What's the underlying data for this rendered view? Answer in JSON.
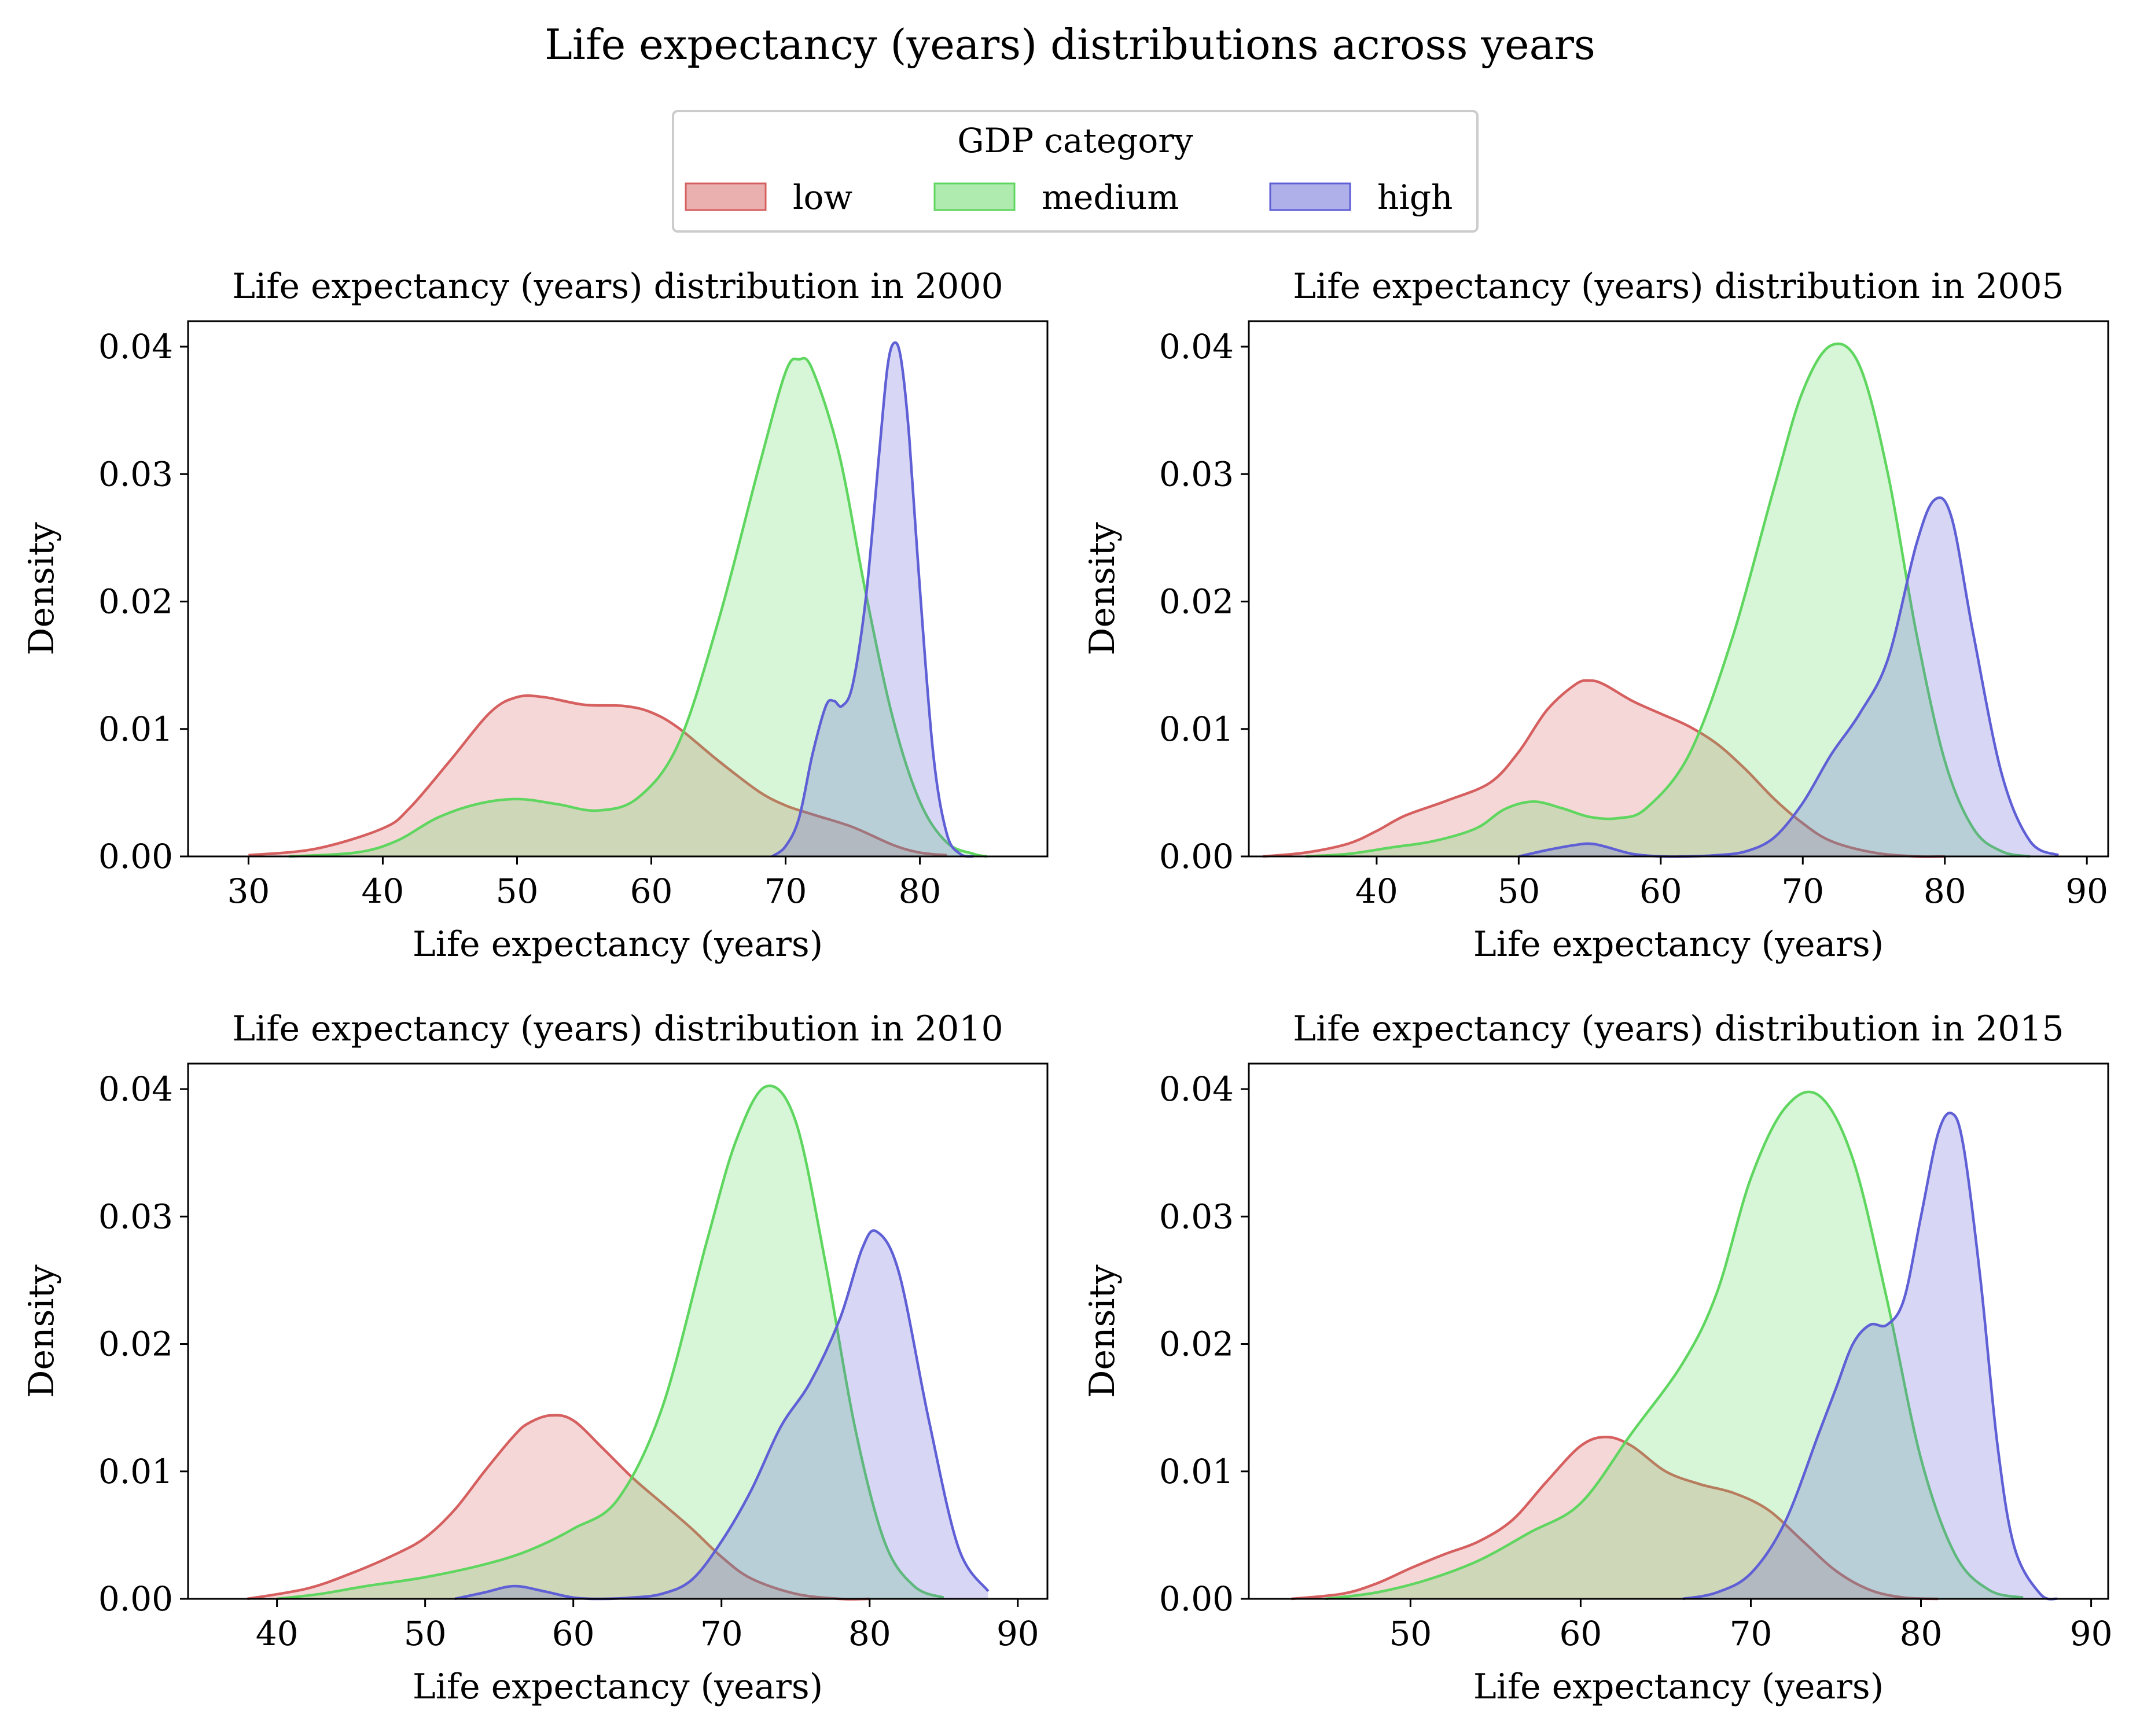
{
  "figure": {
    "title": "Life expectancy (years) distributions across years"
  },
  "legend": {
    "title": "GDP category",
    "placement": "top-center",
    "entries": [
      {
        "label": "low",
        "color": "#d65f5f"
      },
      {
        "label": "medium",
        "color": "#5fd65f"
      },
      {
        "label": "high",
        "color": "#5f5fd6"
      }
    ]
  },
  "chart_data": [
    {
      "type": "area",
      "title": "Life expectancy (years) distribution in 2000",
      "xlabel": "Life expectancy (years)",
      "ylabel": "Density",
      "xlim": [
        25.5,
        89.5
      ],
      "ylim": [
        0,
        0.042
      ],
      "xticks": [
        30,
        40,
        50,
        60,
        70,
        80
      ],
      "yticks": [
        0.0,
        0.01,
        0.02,
        0.03,
        0.04
      ],
      "grid": false,
      "series": [
        {
          "name": "low",
          "color": "#d65f5f",
          "x": [
            30,
            35,
            40,
            42,
            45,
            48,
            50,
            52,
            55,
            58,
            60,
            62,
            65,
            68,
            70,
            72,
            75,
            78,
            80,
            82
          ],
          "y": [
            0.0001,
            0.0006,
            0.0022,
            0.0038,
            0.0075,
            0.0113,
            0.0125,
            0.0125,
            0.0119,
            0.0118,
            0.0113,
            0.0101,
            0.0075,
            0.0051,
            0.004,
            0.0033,
            0.0023,
            0.0009,
            0.0003,
            0.0001
          ]
        },
        {
          "name": "medium",
          "color": "#5fd65f",
          "x": [
            33,
            38,
            41,
            44,
            47,
            50,
            53,
            56,
            59,
            62,
            65,
            68,
            70,
            71,
            72,
            74,
            76,
            78,
            80,
            82,
            84,
            85
          ],
          "y": [
            0.0,
            0.0003,
            0.0012,
            0.003,
            0.0041,
            0.0045,
            0.0041,
            0.0036,
            0.0046,
            0.0088,
            0.0185,
            0.0305,
            0.038,
            0.039,
            0.0382,
            0.0315,
            0.0205,
            0.0108,
            0.0043,
            0.0011,
            0.0002,
            0.0
          ]
        },
        {
          "name": "high",
          "color": "#5f5fd6",
          "x": [
            69,
            70,
            71,
            72,
            73,
            73.6,
            74.2,
            75,
            76,
            77,
            77.6,
            78.1,
            78.6,
            79.2,
            80,
            81,
            82,
            83,
            84
          ],
          "y": [
            0.0,
            0.0008,
            0.003,
            0.008,
            0.0118,
            0.0122,
            0.0118,
            0.0135,
            0.0205,
            0.032,
            0.0385,
            0.0403,
            0.039,
            0.033,
            0.021,
            0.008,
            0.0018,
            0.0002,
            0.0
          ]
        }
      ]
    },
    {
      "type": "area",
      "title": "Life expectancy (years) distribution in 2005",
      "xlabel": "Life expectancy (years)",
      "ylabel": "Density",
      "xlim": [
        31,
        91.5
      ],
      "ylim": [
        0,
        0.042
      ],
      "xticks": [
        40,
        50,
        60,
        70,
        80,
        90
      ],
      "yticks": [
        0.0,
        0.01,
        0.02,
        0.03,
        0.04
      ],
      "grid": false,
      "series": [
        {
          "name": "low",
          "color": "#d65f5f",
          "x": [
            32,
            35,
            38,
            40,
            42,
            45,
            48,
            50,
            52,
            54,
            55,
            56,
            58,
            60,
            62,
            64,
            66,
            68,
            70,
            72,
            75,
            78,
            80
          ],
          "y": [
            0.0,
            0.0003,
            0.001,
            0.002,
            0.0032,
            0.0044,
            0.0058,
            0.0082,
            0.0115,
            0.0135,
            0.0138,
            0.0135,
            0.0122,
            0.0112,
            0.0102,
            0.0088,
            0.0068,
            0.0045,
            0.0026,
            0.0012,
            0.0003,
            0.0,
            0.0
          ]
        },
        {
          "name": "medium",
          "color": "#5fd65f",
          "x": [
            35,
            38,
            41,
            44,
            47,
            49,
            51,
            53,
            55,
            57,
            59,
            62,
            65,
            68,
            70,
            72,
            74,
            76,
            78,
            80,
            82,
            84,
            86
          ],
          "y": [
            0.0,
            0.0002,
            0.0007,
            0.0012,
            0.0022,
            0.0037,
            0.0043,
            0.0038,
            0.0031,
            0.003,
            0.0038,
            0.008,
            0.017,
            0.029,
            0.0365,
            0.0401,
            0.0385,
            0.03,
            0.0175,
            0.0075,
            0.0022,
            0.0004,
            0.0
          ]
        },
        {
          "name": "high",
          "color": "#5f5fd6",
          "x": [
            50,
            52,
            54,
            55,
            56,
            58,
            60,
            62,
            64,
            66,
            68,
            70,
            72,
            74,
            76,
            78,
            79.3,
            80.5,
            82,
            84,
            86,
            88
          ],
          "y": [
            0.0,
            0.0005,
            0.0009,
            0.001,
            0.0008,
            0.0002,
            0.0,
            0.0,
            0.0001,
            0.0004,
            0.0015,
            0.0042,
            0.008,
            0.0112,
            0.0155,
            0.0245,
            0.028,
            0.0265,
            0.0175,
            0.0065,
            0.0012,
            0.0001
          ]
        }
      ]
    },
    {
      "type": "area",
      "title": "Life expectancy (years) distribution in 2010",
      "xlabel": "Life expectancy (years)",
      "ylabel": "Density",
      "xlim": [
        34,
        92
      ],
      "ylim": [
        0,
        0.042
      ],
      "xticks": [
        40,
        50,
        60,
        70,
        80,
        90
      ],
      "yticks": [
        0.0,
        0.01,
        0.02,
        0.03,
        0.04
      ],
      "grid": false,
      "series": [
        {
          "name": "low",
          "color": "#d65f5f",
          "x": [
            38,
            42,
            45,
            48,
            50,
            52,
            54,
            56,
            57,
            58.5,
            60,
            62,
            64,
            66,
            68,
            70,
            72,
            75,
            78,
            80
          ],
          "y": [
            0.0,
            0.0008,
            0.002,
            0.0035,
            0.0048,
            0.007,
            0.01,
            0.0128,
            0.0138,
            0.0144,
            0.014,
            0.0118,
            0.0095,
            0.0075,
            0.0055,
            0.0033,
            0.0016,
            0.0004,
            0.0,
            0.0
          ]
        },
        {
          "name": "medium",
          "color": "#5fd65f",
          "x": [
            40,
            43,
            46,
            50,
            54,
            57,
            60,
            63,
            66,
            69,
            71,
            73,
            75,
            77,
            79,
            81,
            83,
            85
          ],
          "y": [
            0.0,
            0.0004,
            0.001,
            0.0017,
            0.0027,
            0.0038,
            0.0055,
            0.0078,
            0.015,
            0.028,
            0.036,
            0.0402,
            0.0375,
            0.0265,
            0.0135,
            0.0045,
            0.001,
            0.0001
          ]
        },
        {
          "name": "high",
          "color": "#5f5fd6",
          "x": [
            52,
            54,
            56,
            58,
            60,
            62,
            64,
            66,
            68,
            70,
            72,
            74,
            76,
            78,
            79.5,
            80.5,
            82,
            84,
            86,
            88
          ],
          "y": [
            0.0,
            0.0005,
            0.001,
            0.0006,
            0.0001,
            0.0,
            0.0001,
            0.0004,
            0.0015,
            0.0045,
            0.0085,
            0.0135,
            0.017,
            0.022,
            0.0275,
            0.0288,
            0.0255,
            0.014,
            0.004,
            0.0006
          ]
        }
      ]
    },
    {
      "type": "area",
      "title": "Life expectancy (years) distribution in 2015",
      "xlabel": "Life expectancy (years)",
      "ylabel": "Density",
      "xlim": [
        40.5,
        91
      ],
      "ylim": [
        0,
        0.042
      ],
      "xticks": [
        50,
        60,
        70,
        80,
        90
      ],
      "yticks": [
        0.0,
        0.01,
        0.02,
        0.03,
        0.04
      ],
      "grid": false,
      "series": [
        {
          "name": "low",
          "color": "#d65f5f",
          "x": [
            43,
            46,
            48,
            50,
            52,
            54,
            56,
            58,
            60,
            61.5,
            63,
            65,
            67,
            69,
            71,
            73,
            75,
            77,
            79,
            81
          ],
          "y": [
            0.0,
            0.0004,
            0.0012,
            0.0024,
            0.0035,
            0.0045,
            0.0062,
            0.0092,
            0.012,
            0.0127,
            0.012,
            0.01,
            0.009,
            0.0083,
            0.007,
            0.0046,
            0.0022,
            0.0007,
            0.0001,
            0.0
          ]
        },
        {
          "name": "medium",
          "color": "#5fd65f",
          "x": [
            45,
            48,
            51,
            54,
            57,
            60,
            63,
            66,
            68,
            70,
            72,
            74,
            76,
            78,
            80,
            82,
            84,
            86
          ],
          "y": [
            0.0,
            0.0005,
            0.0015,
            0.003,
            0.0052,
            0.0075,
            0.013,
            0.0185,
            0.024,
            0.033,
            0.0385,
            0.0395,
            0.0345,
            0.0235,
            0.011,
            0.0035,
            0.0007,
            0.0001
          ]
        },
        {
          "name": "high",
          "color": "#5f5fd6",
          "x": [
            66,
            68,
            70,
            72,
            74,
            75,
            76,
            77,
            78,
            79,
            80,
            81,
            81.8,
            82.5,
            83.5,
            84.5,
            85.5,
            87,
            88
          ],
          "y": [
            0.0,
            0.0005,
            0.002,
            0.006,
            0.013,
            0.0165,
            0.02,
            0.0215,
            0.0215,
            0.0235,
            0.03,
            0.0365,
            0.0381,
            0.0355,
            0.025,
            0.012,
            0.004,
            0.0004,
            0.0
          ]
        }
      ]
    }
  ]
}
